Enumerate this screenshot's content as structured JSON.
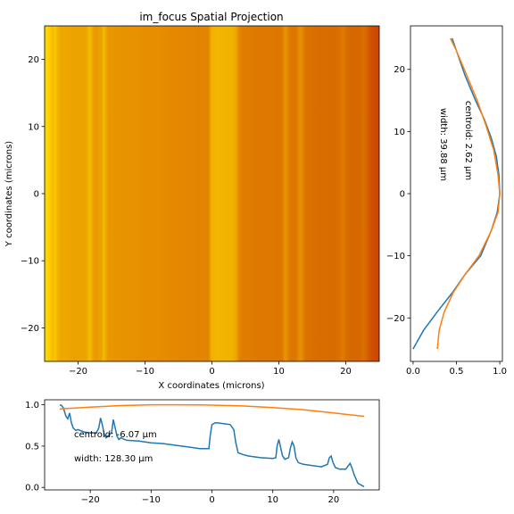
{
  "chart_data": [
    {
      "type": "heatmap",
      "title": "im_focus Spatial Projection",
      "xlabel": "X coordinates (microns)",
      "ylabel": "Y coordinates (microns)",
      "xlim": [
        -25,
        25
      ],
      "ylim": [
        -25,
        25
      ],
      "xticks": [
        -20,
        -10,
        0,
        10,
        20
      ],
      "yticks": [
        -20,
        -10,
        0,
        10,
        20
      ],
      "xtick_labels": [
        "−20",
        "−10",
        "0",
        "10",
        "20"
      ],
      "ytick_labels": [
        "−20",
        "−10",
        "0",
        "10",
        "20"
      ],
      "colormap": "yellow-orange-red",
      "colormap_colors": [
        "#cc4400",
        "#d86c00",
        "#e58800",
        "#f0b000",
        "#ffd800"
      ],
      "column_profile_x": [
        -25,
        -24.7,
        -24.4,
        -24,
        -23.7,
        -23.4,
        -23.1,
        -22.8,
        -22.4,
        -22,
        -21,
        -20,
        -19,
        -18.6,
        -18.3,
        -18,
        -17.7,
        -17.4,
        -17,
        -16.5,
        -16.2,
        -15.9,
        -15.6,
        -15.3,
        -15,
        -14,
        -12,
        -10,
        -8,
        -6,
        -4,
        -2,
        -0.5,
        -0.3,
        0,
        0.5,
        1,
        2,
        3,
        3.6,
        3.9,
        4.3,
        5,
        6,
        8,
        10,
        10.5,
        10.7,
        11,
        11.3,
        11.6,
        12,
        12.6,
        12.9,
        13.2,
        13.5,
        13.8,
        14.2,
        15,
        16,
        18,
        19,
        19.3,
        19.6,
        19.9,
        20.3,
        21,
        22,
        22.4,
        22.7,
        23,
        23.4,
        24,
        25
      ],
      "column_profile_y": [
        1.0,
        0.99,
        0.96,
        0.86,
        0.83,
        0.9,
        0.78,
        0.72,
        0.69,
        0.7,
        0.67,
        0.66,
        0.66,
        0.72,
        0.84,
        0.75,
        0.64,
        0.6,
        0.63,
        0.66,
        0.82,
        0.72,
        0.62,
        0.58,
        0.6,
        0.57,
        0.56,
        0.54,
        0.53,
        0.51,
        0.49,
        0.47,
        0.47,
        0.62,
        0.76,
        0.78,
        0.78,
        0.77,
        0.76,
        0.7,
        0.55,
        0.42,
        0.4,
        0.38,
        0.36,
        0.35,
        0.36,
        0.5,
        0.58,
        0.48,
        0.38,
        0.34,
        0.36,
        0.48,
        0.55,
        0.5,
        0.36,
        0.3,
        0.28,
        0.27,
        0.25,
        0.28,
        0.36,
        0.38,
        0.3,
        0.24,
        0.22,
        0.22,
        0.26,
        0.29,
        0.24,
        0.15,
        0.05,
        0.01
      ]
    },
    {
      "type": "line",
      "xlim": [
        -0.03,
        1.03
      ],
      "ylim": [
        -27,
        27
      ],
      "xticks": [
        0,
        0.5,
        1
      ],
      "yticks": [
        -20,
        -10,
        0,
        10,
        20
      ],
      "xtick_labels": [
        "0.0",
        "0.5",
        "1.0"
      ],
      "ytick_labels": [
        "−20",
        "−10",
        "0",
        "10",
        "20"
      ],
      "series": [
        {
          "color": "#1f77b4",
          "x": [
            0.0,
            0.12,
            0.28,
            0.45,
            0.6,
            0.78,
            0.9,
            0.97,
            1.0,
            0.99,
            0.96,
            0.9,
            0.82,
            0.72,
            0.6,
            0.5,
            0.45
          ],
          "y": [
            -25,
            -22,
            -19,
            -16,
            -13,
            -10,
            -6,
            -3,
            0,
            3,
            6,
            9,
            12,
            15,
            19,
            23,
            25
          ]
        },
        {
          "color": "#ff7f0e",
          "x": [
            0.28,
            0.3,
            0.36,
            0.46,
            0.6,
            0.76,
            0.9,
            0.98,
            1.0,
            0.98,
            0.93,
            0.84,
            0.74,
            0.62,
            0.5,
            0.43
          ],
          "y": [
            -25,
            -22,
            -19,
            -16,
            -13,
            -10,
            -6,
            -3,
            0,
            3,
            7,
            11,
            15,
            19,
            23,
            25
          ]
        }
      ],
      "annotations": [
        {
          "text": "centroid: 2.62 μm"
        },
        {
          "text": "width: 39.88 μm"
        }
      ]
    },
    {
      "type": "line",
      "xlim": [
        -27.5,
        27.5
      ],
      "ylim": [
        -0.03,
        1.06
      ],
      "xticks": [
        -20,
        -10,
        0,
        10,
        20
      ],
      "yticks": [
        0,
        0.5,
        1
      ],
      "xtick_labels": [
        "−20",
        "−10",
        "0",
        "10",
        "20"
      ],
      "ytick_labels": [
        "0.0",
        "0.5",
        "1.0"
      ],
      "series": [
        {
          "color": "#1f77b4",
          "source": "column_profile"
        },
        {
          "color": "#ff7f0e",
          "x": [
            -25,
            -20,
            -15,
            -10,
            -6,
            -2,
            0,
            5,
            10,
            15,
            20,
            25
          ],
          "y": [
            0.95,
            0.97,
            0.99,
            1.0,
            1.0,
            0.998,
            0.995,
            0.985,
            0.965,
            0.94,
            0.9,
            0.86
          ]
        }
      ],
      "annotations": [
        {
          "text": "centroid: -6.07 μm"
        },
        {
          "text": "width: 128.30 μm"
        }
      ]
    }
  ]
}
